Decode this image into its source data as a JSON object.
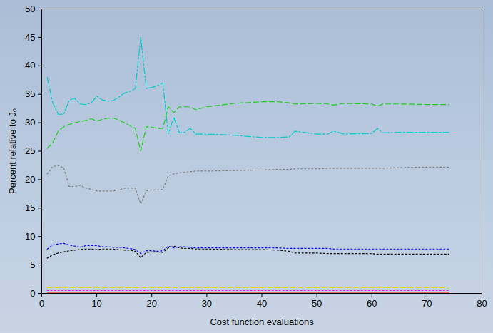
{
  "chart_data": {
    "type": "line",
    "x_label": "Cost function evaluations",
    "y_label": "Percent relative to Jₒ",
    "xlim": [
      0,
      80
    ],
    "xticks": [
      0,
      10,
      20,
      30,
      40,
      50,
      60,
      70,
      80
    ],
    "ylim": [
      0,
      50
    ],
    "yticks": [
      0,
      5,
      10,
      15,
      20,
      25,
      30,
      35,
      40,
      45,
      50
    ],
    "grid": false,
    "x": [
      1,
      2,
      3,
      4,
      5,
      6,
      7,
      8,
      9,
      10,
      11,
      12,
      13,
      14,
      15,
      16,
      17,
      18,
      19,
      20,
      21,
      22,
      23,
      24,
      25,
      26,
      27,
      28,
      30,
      35,
      40,
      43,
      45,
      46,
      50,
      52,
      53,
      55,
      60,
      61,
      62,
      65,
      70,
      74
    ],
    "series": [
      {
        "color": "#00cccc",
        "line_style": "dashdot",
        "marker": "none",
        "values": [
          38,
          33.5,
          31.5,
          31.5,
          34,
          34.3,
          33.3,
          33.2,
          33.5,
          34.7,
          34,
          33.8,
          33.9,
          34.5,
          35.2,
          35.5,
          36,
          45,
          36,
          36.2,
          36.5,
          37,
          28,
          31,
          28.2,
          28.3,
          29,
          28,
          28,
          27.8,
          27.4,
          27.4,
          27.5,
          28.5,
          28,
          28,
          28.5,
          28,
          28.1,
          29,
          28.2,
          28.3,
          28.3,
          28.3
        ]
      },
      {
        "color": "#22cc22",
        "line_style": "dashed",
        "marker": "none",
        "values": [
          25.5,
          26.5,
          28.5,
          29.3,
          29.7,
          30,
          30.2,
          30.4,
          30.7,
          30.3,
          30.6,
          30.8,
          30.8,
          30.5,
          30,
          29.5,
          29,
          25,
          29.3,
          29.2,
          29,
          29,
          32.8,
          31.8,
          32.8,
          32.8,
          32.8,
          32.3,
          32.8,
          33.4,
          33.7,
          33.7,
          33.5,
          33.3,
          33.4,
          33.3,
          33.1,
          33.4,
          33.3,
          32.9,
          33.3,
          33.3,
          33.2,
          33.2
        ]
      },
      {
        "color": "#808080",
        "line_style": "dotted",
        "marker": "none",
        "values": [
          21,
          22.3,
          22.5,
          22,
          18.8,
          18.8,
          19,
          18.5,
          18.3,
          18,
          18,
          18,
          18,
          18.2,
          18.5,
          18.5,
          18.5,
          15.7,
          18,
          18.2,
          18.2,
          18.3,
          20.7,
          21,
          21.2,
          21.3,
          21.4,
          21.5,
          21.5,
          21.6,
          21.7,
          21.8,
          21.8,
          21.9,
          21.9,
          22,
          22,
          22,
          22,
          22,
          22,
          22.1,
          22.2,
          22.2
        ]
      },
      {
        "color": "#0000ff",
        "line_style": "dotted",
        "marker": "none",
        "values": [
          7.8,
          8.5,
          8.7,
          8.8,
          8.5,
          8.3,
          8.1,
          8.4,
          8.4,
          8.4,
          8.2,
          8.2,
          8.1,
          8.1,
          8,
          7.9,
          7.7,
          7,
          7.5,
          7.5,
          7.4,
          7.5,
          8.3,
          8,
          8.2,
          8.2,
          8.1,
          8,
          8,
          8,
          8,
          8,
          7.9,
          7.9,
          7.9,
          7.9,
          7.8,
          7.8,
          7.8,
          7.8,
          7.8,
          7.8,
          7.8,
          7.8
        ]
      },
      {
        "color": "#000000",
        "line_style": "dotted",
        "marker": "none",
        "values": [
          6.2,
          6.8,
          7.1,
          7.3,
          7.5,
          7.6,
          7.7,
          7.8,
          7.8,
          7.7,
          7.8,
          7.8,
          7.8,
          7.7,
          7.6,
          7.6,
          7.4,
          6.3,
          7.2,
          7.3,
          7.3,
          7.2,
          8,
          8.3,
          8,
          7.9,
          7.9,
          7.8,
          7.8,
          7.7,
          7.7,
          7.6,
          7.4,
          7.1,
          7.1,
          7,
          7,
          7,
          7,
          6.9,
          6.9,
          6.9,
          6.9,
          6.9
        ]
      },
      {
        "color": "#dddd00",
        "line_style": "dashed",
        "marker": "none",
        "values": [
          1,
          1,
          1,
          1,
          1,
          1,
          1,
          1,
          1,
          1,
          1,
          1,
          1,
          1,
          1,
          1,
          1,
          1,
          1,
          1,
          1,
          1,
          1,
          1,
          1,
          1,
          1,
          1,
          1,
          1,
          1,
          1,
          1,
          1,
          1,
          1,
          1,
          1,
          1,
          1,
          1,
          1,
          1,
          1
        ]
      },
      {
        "color": "#ff00ff",
        "line_style": "dotted",
        "marker": "none",
        "values": [
          0.5,
          0.5,
          0.5,
          0.5,
          0.5,
          0.5,
          0.5,
          0.5,
          0.5,
          0.5,
          0.5,
          0.5,
          0.5,
          0.5,
          0.5,
          0.5,
          0.5,
          0.5,
          0.5,
          0.5,
          0.5,
          0.5,
          0.5,
          0.5,
          0.5,
          0.5,
          0.5,
          0.5,
          0.5,
          0.5,
          0.5,
          0.5,
          0.5,
          0.5,
          0.5,
          0.5,
          0.5,
          0.5,
          0.5,
          0.5,
          0.5,
          0.5,
          0.5,
          0.5
        ]
      },
      {
        "color": "#ff0000",
        "line_style": "solid",
        "marker": "none",
        "values": [
          0.2,
          0.2,
          0.2,
          0.2,
          0.2,
          0.2,
          0.2,
          0.2,
          0.2,
          0.2,
          0.2,
          0.2,
          0.2,
          0.2,
          0.2,
          0.2,
          0.2,
          0.2,
          0.2,
          0.2,
          0.2,
          0.2,
          0.2,
          0.2,
          0.2,
          0.2,
          0.2,
          0.2,
          0.2,
          0.2,
          0.2,
          0.2,
          0.2,
          0.2,
          0.2,
          0.2,
          0.2,
          0.2,
          0.2,
          0.2,
          0.2,
          0.2,
          0.2,
          0.2
        ]
      }
    ]
  }
}
